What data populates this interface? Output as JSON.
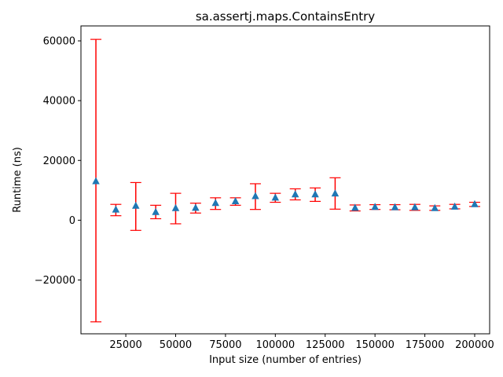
{
  "chart_data": {
    "type": "scatter",
    "title": "sa.assertj.maps.ContainsEntry",
    "xlabel": "Input size (number of entries)",
    "ylabel": "Runtime (ns)",
    "xlim": [
      2500,
      207500
    ],
    "ylim": [
      -38000,
      65000
    ],
    "xticks": [
      25000,
      50000,
      75000,
      100000,
      125000,
      150000,
      175000,
      200000
    ],
    "xtick_labels": [
      "25000",
      "50000",
      "75000",
      "100000",
      "125000",
      "150000",
      "175000",
      "200000"
    ],
    "yticks": [
      -20000,
      0,
      20000,
      40000,
      60000
    ],
    "ytick_labels": [
      "−20000",
      "0",
      "20000",
      "40000",
      "60000"
    ],
    "grid": false,
    "series": [
      {
        "marker_color": "#1f77b4",
        "error_color": "#ff0000",
        "marker": "triangle",
        "points": [
          {
            "x": 10000,
            "y": 13000,
            "low": -34000,
            "high": 60500
          },
          {
            "x": 20000,
            "y": 3500,
            "low": 1500,
            "high": 5300
          },
          {
            "x": 30000,
            "y": 4800,
            "low": -3400,
            "high": 12600
          },
          {
            "x": 40000,
            "y": 2700,
            "low": 500,
            "high": 5000
          },
          {
            "x": 50000,
            "y": 4000,
            "low": -1200,
            "high": 9000
          },
          {
            "x": 60000,
            "y": 4100,
            "low": 2400,
            "high": 5700
          },
          {
            "x": 70000,
            "y": 5700,
            "low": 3600,
            "high": 7500
          },
          {
            "x": 80000,
            "y": 6300,
            "low": 5000,
            "high": 7500
          },
          {
            "x": 90000,
            "y": 8000,
            "low": 3600,
            "high": 12200
          },
          {
            "x": 100000,
            "y": 7500,
            "low": 6000,
            "high": 9000
          },
          {
            "x": 110000,
            "y": 8600,
            "low": 6800,
            "high": 10500
          },
          {
            "x": 120000,
            "y": 8600,
            "low": 6300,
            "high": 10800
          },
          {
            "x": 130000,
            "y": 8900,
            "low": 3700,
            "high": 14200
          },
          {
            "x": 140000,
            "y": 4100,
            "low": 3100,
            "high": 5100
          },
          {
            "x": 150000,
            "y": 4400,
            "low": 3600,
            "high": 5200
          },
          {
            "x": 160000,
            "y": 4300,
            "low": 3500,
            "high": 5200
          },
          {
            "x": 170000,
            "y": 4300,
            "low": 3300,
            "high": 5300
          },
          {
            "x": 180000,
            "y": 4000,
            "low": 3300,
            "high": 4800
          },
          {
            "x": 190000,
            "y": 4500,
            "low": 3800,
            "high": 5300
          },
          {
            "x": 200000,
            "y": 5300,
            "low": 4600,
            "high": 6000
          }
        ]
      }
    ]
  }
}
